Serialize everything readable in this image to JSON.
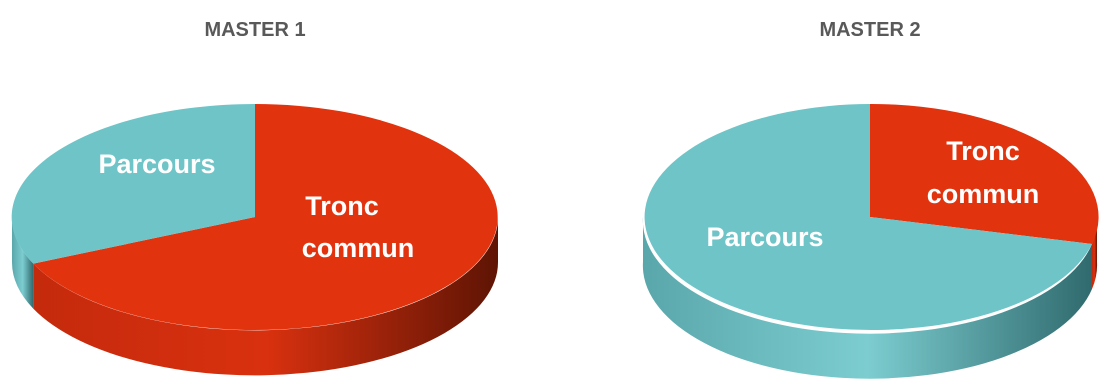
{
  "colors": {
    "tronc": "#E2330F",
    "tronc_side": "#9E2208",
    "parcours": "#6FC4C7",
    "parcours_side": "#4E9A9E",
    "title": "#595959",
    "label": "#FFFFFF"
  },
  "chart_data": [
    {
      "type": "pie",
      "title": "MASTER 1",
      "slices": [
        {
          "label": "Tronc commun",
          "label_lines": [
            "Tronc",
            "commun"
          ],
          "value": 64
        },
        {
          "label": "Parcours",
          "label_lines": [
            "Parcours"
          ],
          "value": 36
        }
      ]
    },
    {
      "type": "pie",
      "title": "MASTER 2",
      "slices": [
        {
          "label": "Tronc commun",
          "label_lines": [
            "Tronc",
            "commun"
          ],
          "value": 33
        },
        {
          "label": "Parcours",
          "label_lines": [
            "Parcours"
          ],
          "value": 67
        }
      ]
    }
  ]
}
